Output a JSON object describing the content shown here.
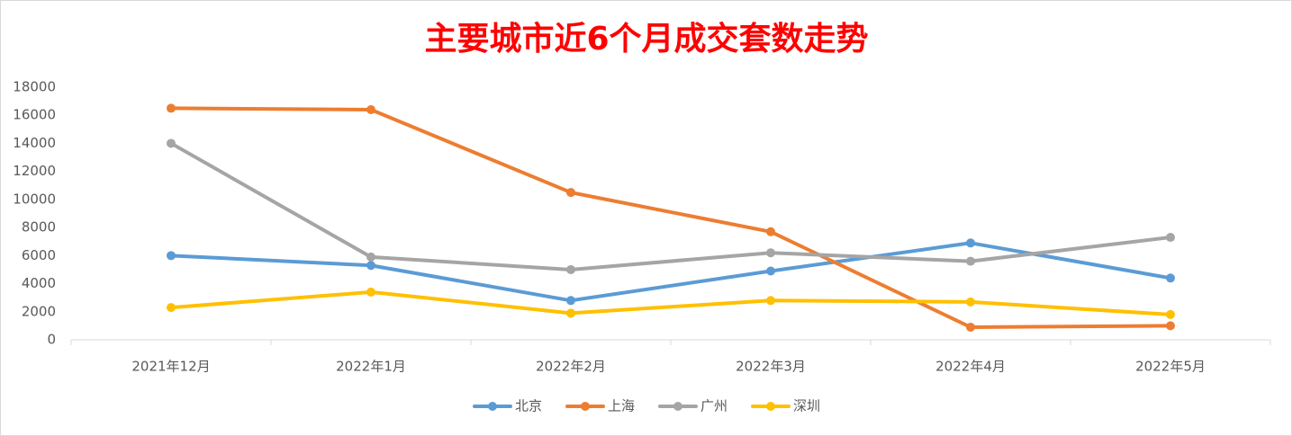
{
  "chart_data": {
    "type": "line",
    "title": "主要城市近6个月成交套数走势",
    "categories": [
      "2021年12月",
      "2022年1月",
      "2022年2月",
      "2022年3月",
      "2022年4月",
      "2022年5月"
    ],
    "series": [
      {
        "name": "北京",
        "color": "#5b9bd5",
        "values": [
          6000,
          5300,
          2800,
          4900,
          6900,
          4400
        ]
      },
      {
        "name": "上海",
        "color": "#ed7d31",
        "values": [
          16500,
          16400,
          10500,
          7700,
          900,
          1000
        ]
      },
      {
        "name": "广州",
        "color": "#a5a5a5",
        "values": [
          14000,
          5900,
          5000,
          6200,
          5600,
          7300
        ]
      },
      {
        "name": "深圳",
        "color": "#ffc000",
        "values": [
          2300,
          3400,
          1900,
          2800,
          2700,
          1800
        ]
      }
    ],
    "ylim": [
      0,
      18000
    ],
    "yticks": [
      0,
      2000,
      4000,
      6000,
      8000,
      10000,
      12000,
      14000,
      16000,
      18000
    ],
    "grid": false,
    "legend": "bottom"
  }
}
